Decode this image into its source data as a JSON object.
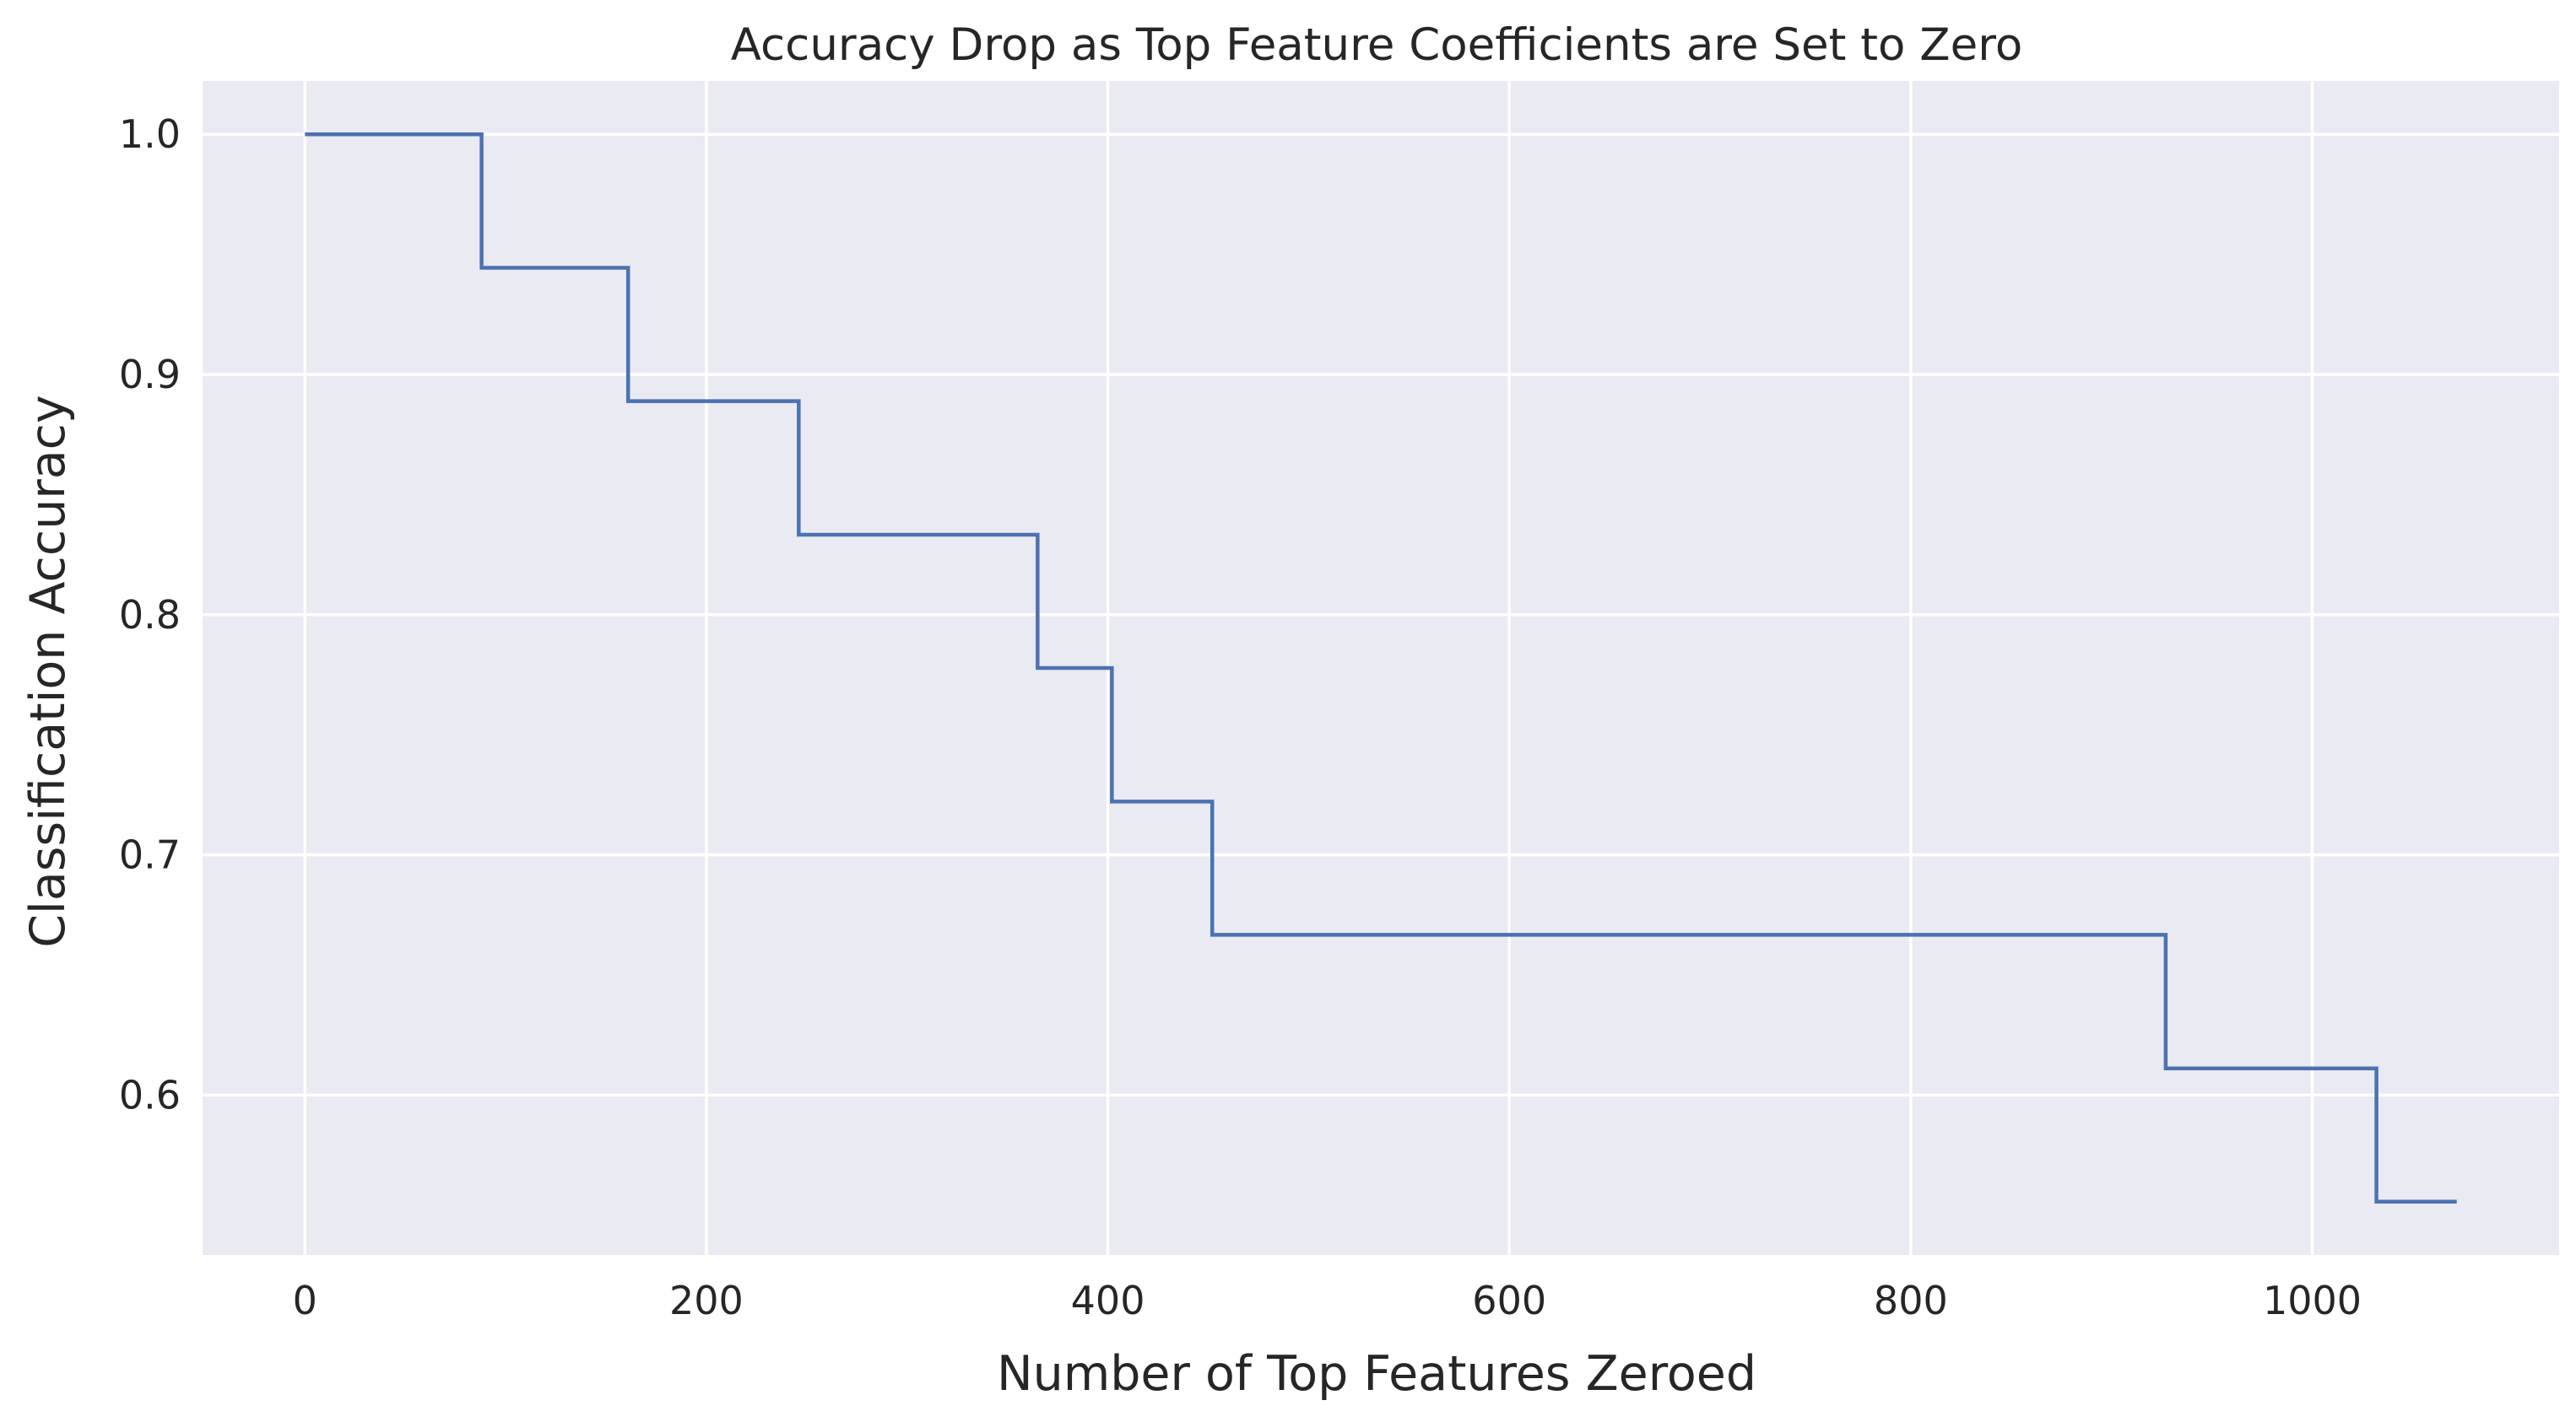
{
  "chart_data": {
    "type": "line",
    "title": "Accuracy Drop as Top Feature Coefficients are Set to Zero",
    "xlabel": "Number of Top Features Zeroed",
    "ylabel": "Classification Accuracy",
    "xlim": [
      -51,
      1123
    ],
    "ylim": [
      0.5334,
      1.0222
    ],
    "xticks": [
      0,
      200,
      400,
      600,
      800,
      1000
    ],
    "xtick_labels": [
      "0",
      "200",
      "400",
      "600",
      "800",
      "1000"
    ],
    "yticks": [
      0.6,
      0.7,
      0.8,
      0.9,
      1.0
    ],
    "ytick_labels": [
      "0.6",
      "0.7",
      "0.8",
      "0.9",
      "1.0"
    ],
    "grid": true,
    "background": "#eaeaf2",
    "grid_color": "#ffffff",
    "series": [
      {
        "color": "#4c72b0",
        "drawstyle": "steps-post",
        "x": [
          0,
          88,
          161,
          246,
          365,
          402,
          452,
          927,
          1032,
          1072
        ],
        "y": [
          1.0,
          0.9444,
          0.8889,
          0.8333,
          0.7778,
          0.7222,
          0.6667,
          0.6111,
          0.5556,
          0.5556
        ]
      }
    ]
  }
}
